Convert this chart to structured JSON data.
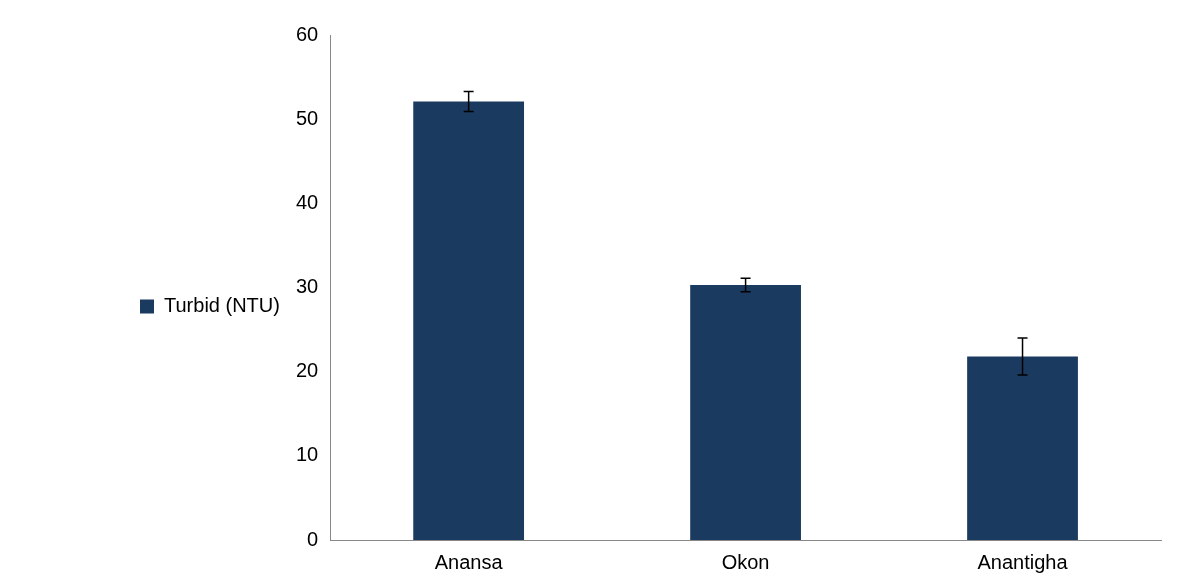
{
  "chart_data": {
    "type": "bar",
    "categories": [
      "Anansa",
      "Okon",
      "Anantigha"
    ],
    "series": [
      {
        "name": "Turbid (NTU)",
        "color": "#1b3a5f",
        "values": [
          52.1,
          30.3,
          21.8
        ],
        "errors": [
          1.2,
          0.8,
          2.2
        ]
      }
    ],
    "ylim": [
      0,
      60
    ],
    "yticks": [
      0,
      10,
      20,
      30,
      40,
      50,
      60
    ],
    "grid": false,
    "legend": "left"
  }
}
